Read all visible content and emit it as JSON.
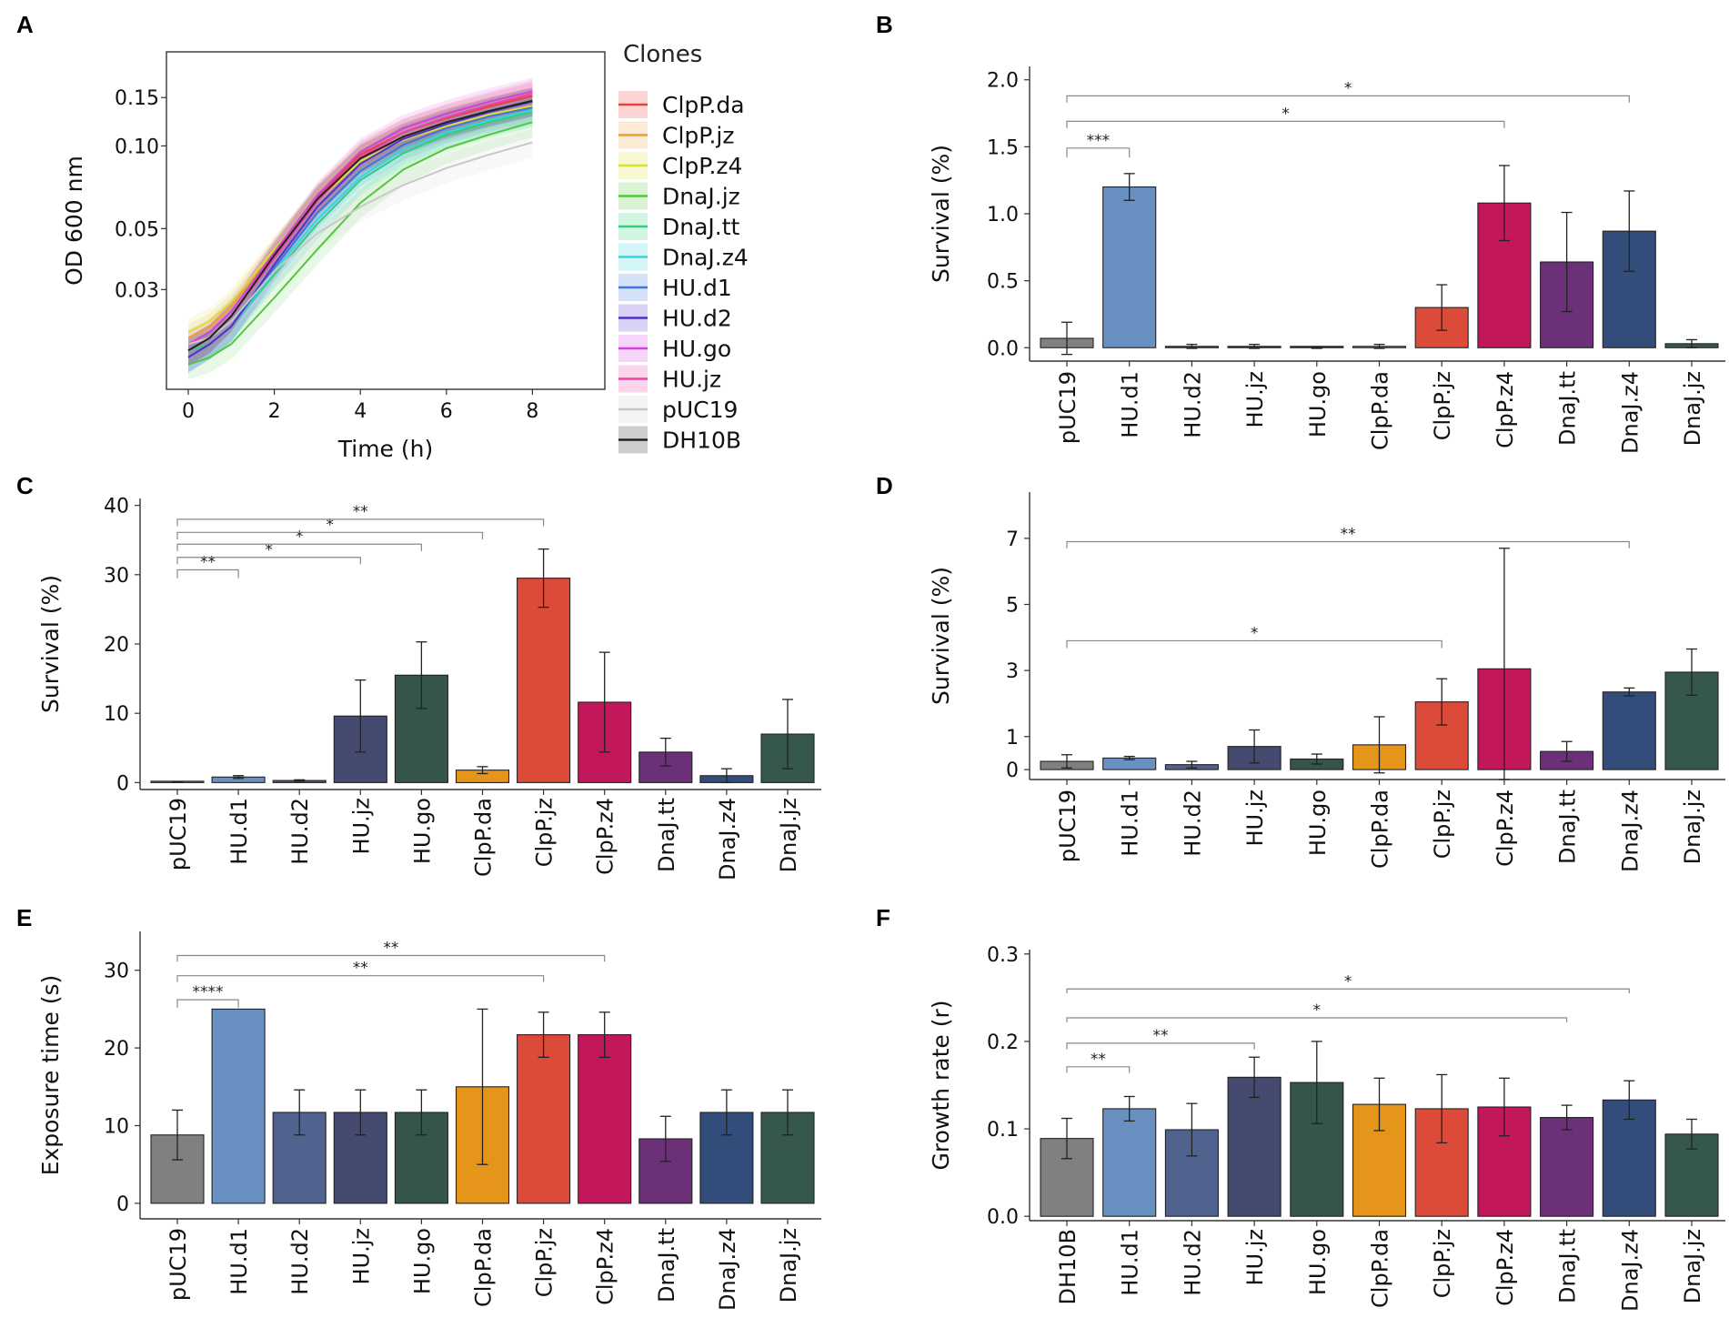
{
  "panel_labels": [
    "A",
    "B",
    "C",
    "D",
    "E",
    "F"
  ],
  "chart_data": [
    {
      "panel": "A",
      "type": "line",
      "xlabel": "Time (h)",
      "ylabel": "OD 600 nm",
      "x_ticks": [
        "0",
        "2",
        "4",
        "6",
        "8"
      ],
      "y_ticks": [
        "0.15",
        "0.10",
        "0.05",
        "0.03"
      ],
      "legend_title": "Clones",
      "x": [
        0,
        0.5,
        1,
        2,
        3,
        4,
        5,
        6,
        7,
        8
      ],
      "series": [
        {
          "name": "ClpP.da",
          "color": "#e8413c",
          "values": [
            0.018,
            0.02,
            0.024,
            0.04,
            0.065,
            0.093,
            0.112,
            0.126,
            0.139,
            0.152
          ]
        },
        {
          "name": "ClpP.jz",
          "color": "#f0a030",
          "values": [
            0.02,
            0.022,
            0.026,
            0.041,
            0.064,
            0.09,
            0.108,
            0.122,
            0.134,
            0.145
          ]
        },
        {
          "name": "ClpP.z4",
          "color": "#d8e030",
          "values": [
            0.021,
            0.023,
            0.027,
            0.042,
            0.063,
            0.088,
            0.105,
            0.118,
            0.13,
            0.14
          ]
        },
        {
          "name": "DnaJ.jz",
          "color": "#50c83a",
          "values": [
            0.016,
            0.017,
            0.019,
            0.028,
            0.042,
            0.062,
            0.082,
            0.098,
            0.11,
            0.122
          ]
        },
        {
          "name": "DnaJ.tt",
          "color": "#30d07a",
          "values": [
            0.018,
            0.019,
            0.022,
            0.034,
            0.052,
            0.075,
            0.094,
            0.11,
            0.122,
            0.133
          ]
        },
        {
          "name": "DnaJ.z4",
          "color": "#30d8e0",
          "values": [
            0.017,
            0.019,
            0.022,
            0.035,
            0.054,
            0.077,
            0.097,
            0.112,
            0.124,
            0.135
          ]
        },
        {
          "name": "HU.d1",
          "color": "#3a78e0",
          "values": [
            0.017,
            0.019,
            0.022,
            0.036,
            0.057,
            0.081,
            0.101,
            0.116,
            0.128,
            0.138
          ]
        },
        {
          "name": "HU.d2",
          "color": "#5030d0",
          "values": [
            0.017,
            0.019,
            0.022,
            0.037,
            0.06,
            0.086,
            0.106,
            0.12,
            0.133,
            0.145
          ]
        },
        {
          "name": "HU.go",
          "color": "#d040e0",
          "values": [
            0.019,
            0.021,
            0.025,
            0.041,
            0.066,
            0.095,
            0.116,
            0.131,
            0.145,
            0.158
          ]
        },
        {
          "name": "HU.jz",
          "color": "#f040a8",
          "values": [
            0.018,
            0.02,
            0.024,
            0.039,
            0.063,
            0.091,
            0.112,
            0.127,
            0.141,
            0.155
          ]
        },
        {
          "name": "pUC19",
          "color": "#c8c8c8",
          "values": [
            0.019,
            0.02,
            0.023,
            0.035,
            0.048,
            0.06,
            0.072,
            0.083,
            0.093,
            0.103
          ]
        },
        {
          "name": "DH10B",
          "color": "#222222",
          "values": [
            0.018,
            0.02,
            0.024,
            0.04,
            0.064,
            0.09,
            0.108,
            0.122,
            0.134,
            0.146
          ]
        }
      ]
    },
    {
      "panel": "B",
      "type": "bar",
      "ylabel": "Survival (%)",
      "ylim": [
        -0.1,
        2.1
      ],
      "y_ticks": [
        0.0,
        0.5,
        1.0,
        1.5,
        2.0
      ],
      "y_tick_labels": [
        "0.0",
        "0.5",
        "1.0",
        "1.5",
        "2.0"
      ],
      "categories": [
        "pUC19",
        "HU.d1",
        "HU.d2",
        "HU.jz",
        "HU.go",
        "ClpP.da",
        "ClpP.jz",
        "ClpP.z4",
        "DnaJ.tt",
        "DnaJ.z4",
        "DnaJ.jz"
      ],
      "values": [
        0.07,
        1.2,
        0.01,
        0.01,
        0.0,
        0.01,
        0.3,
        1.08,
        0.64,
        0.87,
        0.03
      ],
      "errors": [
        0.12,
        0.1,
        0.015,
        0.015,
        0.005,
        0.015,
        0.17,
        0.28,
        0.37,
        0.3,
        0.03
      ],
      "significance": [
        {
          "from": "pUC19",
          "to": "HU.d1",
          "label": "***",
          "y": 1.49,
          "tick_drop": 0.07
        },
        {
          "from": "pUC19",
          "to": "ClpP.z4",
          "label": "*",
          "y": 1.69,
          "tick_drop": 0.05
        },
        {
          "from": "pUC19",
          "to": "DnaJ.z4",
          "label": "*",
          "y": 1.88,
          "tick_drop": 0.05
        }
      ]
    },
    {
      "panel": "C",
      "type": "bar",
      "ylabel": "Survival (%)",
      "ylim": [
        -1,
        41
      ],
      "y_ticks": [
        0,
        10,
        20,
        30,
        40
      ],
      "y_tick_labels": [
        "0",
        "10",
        "20",
        "30",
        "40"
      ],
      "categories": [
        "pUC19",
        "HU.d1",
        "HU.d2",
        "HU.jz",
        "HU.go",
        "ClpP.da",
        "ClpP.jz",
        "ClpP.z4",
        "DnaJ.tt",
        "DnaJ.z4",
        "DnaJ.jz"
      ],
      "values": [
        0.1,
        0.8,
        0.3,
        9.6,
        15.5,
        1.8,
        29.5,
        11.6,
        4.4,
        1.0,
        7.0
      ],
      "errors": [
        0.05,
        0.2,
        0.1,
        5.2,
        4.8,
        0.5,
        4.2,
        7.2,
        2.0,
        1.0,
        5.0
      ],
      "significance": [
        {
          "from": "pUC19",
          "to": "HU.d1",
          "label": "**",
          "y": 30.7,
          "tick_drop": 1.2
        },
        {
          "from": "pUC19",
          "to": "HU.jz",
          "label": "*",
          "y": 32.5,
          "tick_drop": 1.0
        },
        {
          "from": "pUC19",
          "to": "HU.go",
          "label": "*",
          "y": 34.4,
          "tick_drop": 1.0
        },
        {
          "from": "pUC19",
          "to": "ClpP.da",
          "label": "*",
          "y": 36.1,
          "tick_drop": 1.0
        },
        {
          "from": "pUC19",
          "to": "ClpP.jz",
          "label": "**",
          "y": 38.0,
          "tick_drop": 1.0
        }
      ]
    },
    {
      "panel": "D",
      "type": "bar",
      "ylabel": "Survival (%)",
      "ylim": [
        -0.3,
        8.4
      ],
      "y_ticks": [
        0,
        1,
        3,
        5,
        7
      ],
      "y_tick_labels": [
        "0",
        "1",
        "3",
        "5",
        "7"
      ],
      "categories": [
        "pUC19",
        "HU.d1",
        "HU.d2",
        "HU.jz",
        "HU.go",
        "ClpP.da",
        "ClpP.jz",
        "ClpP.z4",
        "DnaJ.tt",
        "DnaJ.z4",
        "DnaJ.jz"
      ],
      "values": [
        0.25,
        0.35,
        0.15,
        0.7,
        0.32,
        0.75,
        2.05,
        3.05,
        0.55,
        2.35,
        2.95
      ],
      "errors": [
        0.2,
        0.05,
        0.1,
        0.5,
        0.15,
        0.85,
        0.7,
        3.65,
        0.3,
        0.12,
        0.7
      ],
      "significance": [
        {
          "from": "pUC19",
          "to": "ClpP.jz",
          "label": "*",
          "y": 3.9,
          "tick_drop": 0.22
        },
        {
          "from": "pUC19",
          "to": "DnaJ.z4",
          "label": "**",
          "y": 6.9,
          "tick_drop": 0.2
        }
      ]
    },
    {
      "panel": "E",
      "type": "bar",
      "ylabel": "Exposure time (s)",
      "ylim": [
        -2,
        35
      ],
      "y_ticks": [
        0,
        10,
        20,
        30
      ],
      "y_tick_labels": [
        "0",
        "10",
        "20",
        "30"
      ],
      "categories": [
        "pUC19",
        "HU.d1",
        "HU.d2",
        "HU.jz",
        "HU.go",
        "ClpP.da",
        "ClpP.jz",
        "ClpP.z4",
        "DnaJ.tt",
        "DnaJ.z4",
        "DnaJ.jz"
      ],
      "values": [
        8.8,
        25.0,
        11.7,
        11.7,
        11.7,
        15.0,
        21.7,
        21.7,
        8.3,
        11.7,
        11.7
      ],
      "errors": [
        3.2,
        0,
        2.9,
        2.9,
        2.9,
        10.0,
        2.9,
        2.9,
        2.9,
        2.9,
        2.9
      ],
      "significance": [
        {
          "from": "pUC19",
          "to": "HU.d1",
          "label": "****",
          "y": 26.2,
          "tick_drop": 1.0
        },
        {
          "from": "pUC19",
          "to": "ClpP.jz",
          "label": "**",
          "y": 29.3,
          "tick_drop": 0.8
        },
        {
          "from": "pUC19",
          "to": "ClpP.z4",
          "label": "**",
          "y": 31.9,
          "tick_drop": 0.8
        }
      ]
    },
    {
      "panel": "F",
      "type": "bar",
      "ylabel": "Growth rate (r)",
      "ylim": [
        -0.005,
        0.305
      ],
      "y_ticks": [
        0.0,
        0.1,
        0.2,
        0.3
      ],
      "y_tick_labels": [
        "0.0",
        "0.1",
        "0.2",
        "0.3"
      ],
      "categories": [
        "DH10B",
        "HU.d1",
        "HU.d2",
        "HU.jz",
        "HU.go",
        "ClpP.da",
        "ClpP.jz",
        "ClpP.z4",
        "DnaJ.tt",
        "DnaJ.z4",
        "DnaJ.jz"
      ],
      "values": [
        0.089,
        0.123,
        0.099,
        0.159,
        0.153,
        0.128,
        0.123,
        0.125,
        0.113,
        0.133,
        0.094
      ],
      "errors": [
        0.023,
        0.014,
        0.03,
        0.023,
        0.047,
        0.03,
        0.039,
        0.033,
        0.014,
        0.022,
        0.017
      ],
      "significance": [
        {
          "from": "DH10B",
          "to": "HU.d1",
          "label": "**",
          "y": 0.171,
          "tick_drop": 0.007
        },
        {
          "from": "DH10B",
          "to": "HU.jz",
          "label": "**",
          "y": 0.198,
          "tick_drop": 0.007
        },
        {
          "from": "DH10B",
          "to": "DnaJ.tt",
          "label": "*",
          "y": 0.227,
          "tick_drop": 0.005
        },
        {
          "from": "DH10B",
          "to": "DnaJ.z4",
          "label": "*",
          "y": 0.26,
          "tick_drop": 0.005
        }
      ]
    }
  ],
  "bar_colors": {
    "pUC19": "#808080",
    "DH10B": "#808080",
    "HU.d1": "#6890c0",
    "HU.d2": "#50638f",
    "HU.jz": "#454a70",
    "HU.go": "#35554a",
    "ClpP.da": "#e5951a",
    "ClpP.jz": "#dc4b3a",
    "ClpP.z4": "#c2185b",
    "DnaJ.tt": "#6b3078",
    "DnaJ.z4": "#324d7a",
    "DnaJ.jz": "#35584a"
  }
}
